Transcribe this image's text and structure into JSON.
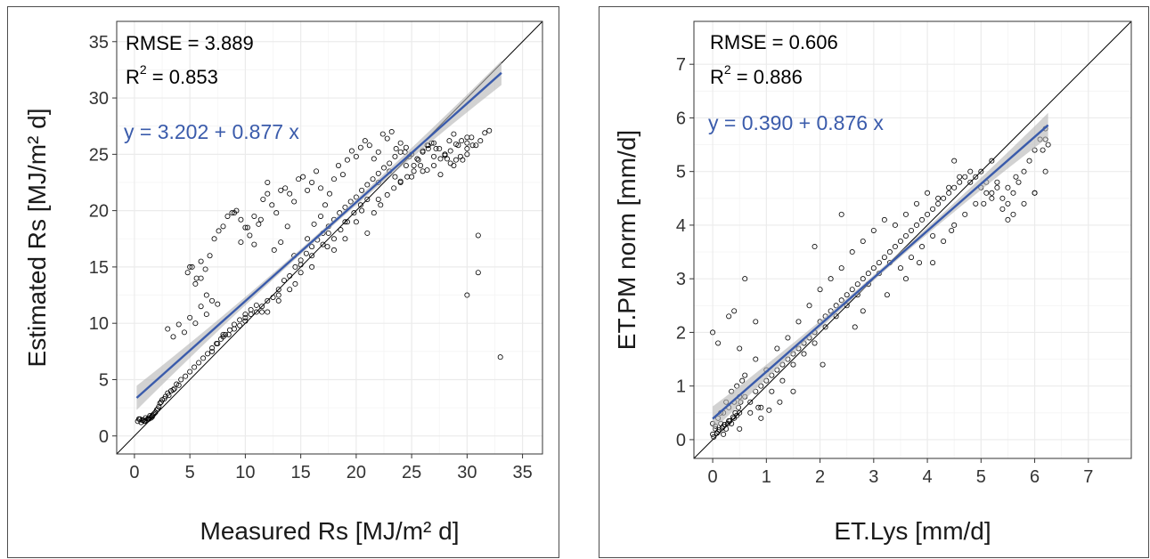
{
  "colors": {
    "fit_line": "#3a5bab",
    "ci_band": "#b4b4b4",
    "grid": "#ebebeb",
    "points": "#000000"
  },
  "chart_data": [
    {
      "type": "scatter",
      "xlabel": "Measured Rs [MJ/m² d]",
      "ylabel": "Estimated Rs [MJ/m² d]",
      "xlim": [
        -1.6,
        36.8
      ],
      "ylim": [
        -1.6,
        36.8
      ],
      "xticks": [
        0,
        5,
        10,
        15,
        20,
        25,
        30,
        35
      ],
      "yticks": [
        0,
        5,
        10,
        15,
        20,
        25,
        30,
        35
      ],
      "grid": true,
      "identity_line": true,
      "annotations": {
        "rmse_label": "RMSE = 3.889",
        "r2_label": "R",
        "r2_sup": "2",
        "r2_value": " = 0.853",
        "equation": "y = 3.202 + 0.877 x"
      },
      "fit": {
        "intercept": 3.202,
        "slope": 0.877,
        "x_range": [
          0.2,
          33.1
        ]
      },
      "points_x": [
        0.3,
        0.5,
        0.8,
        1.0,
        1.2,
        1.4,
        1.6,
        1.8,
        0.6,
        0.9,
        1.1,
        1.3,
        1.5,
        1.7,
        2.0,
        2.2,
        0.4,
        0.7,
        1.0,
        1.3,
        1.6,
        1.9,
        2.1,
        2.3,
        2.5,
        2.8,
        3.0,
        3.3,
        3.6,
        4.0,
        2.4,
        2.7,
        3.1,
        3.5,
        3.8,
        4.2,
        4.6,
        5.0,
        5.4,
        5.8,
        6.2,
        6.6,
        7.0,
        7.4,
        7.8,
        8.2,
        8.6,
        9.0,
        9.5,
        10.0,
        10.5,
        11.0,
        3.0,
        3.5,
        4.0,
        4.5,
        5.0,
        5.5,
        6.0,
        6.5,
        7.0,
        7.5,
        4.8,
        5.2,
        5.6,
        6.0,
        6.4,
        6.8,
        7.2,
        7.6,
        8.0,
        8.4,
        8.8,
        9.2,
        9.6,
        10.0,
        10.4,
        10.8,
        11.2,
        11.6,
        12.0,
        12.4,
        12.8,
        13.2,
        13.6,
        14.0,
        14.4,
        14.8,
        15.2,
        15.6,
        16.0,
        16.4,
        16.8,
        17.2,
        17.6,
        18.0,
        18.4,
        18.8,
        19.2,
        19.6,
        20.0,
        20.4,
        20.8,
        21.2,
        21.6,
        22.0,
        22.4,
        22.8,
        23.2,
        23.6,
        24.0,
        24.4,
        24.8,
        25.2,
        25.6,
        26.0,
        26.4,
        26.8,
        27.2,
        27.6,
        28.0,
        28.4,
        28.8,
        29.2,
        29.6,
        30.0,
        30.4,
        30.8,
        31.2,
        31.6,
        32.0,
        33.0,
        7.0,
        7.5,
        8.0,
        8.5,
        9.0,
        9.5,
        10.0,
        10.5,
        11.0,
        11.5,
        12.0,
        12.5,
        13.0,
        13.5,
        14.0,
        14.5,
        15.0,
        15.5,
        16.0,
        16.5,
        17.0,
        17.5,
        18.0,
        18.5,
        19.0,
        19.5,
        20.0,
        20.5,
        21.0,
        21.5,
        22.0,
        22.5,
        23.0,
        23.5,
        24.0,
        24.5,
        25.0,
        25.5,
        26.0,
        26.5,
        27.0,
        27.5,
        28.0,
        28.5,
        29.0,
        29.5,
        30.0,
        30.5,
        31.0,
        9.0,
        9.6,
        10.2,
        10.8,
        11.4,
        12.0,
        12.6,
        13.2,
        13.8,
        14.4,
        15.0,
        15.6,
        16.2,
        16.8,
        17.4,
        18.0,
        18.6,
        19.2,
        19.8,
        20.4,
        21.0,
        21.6,
        22.2,
        22.8,
        23.4,
        24.0,
        24.6,
        25.2,
        25.8,
        26.4,
        27.0,
        27.6,
        28.2,
        28.8,
        29.4,
        30.0,
        12.0,
        13.0,
        14.0,
        15.0,
        16.0,
        17.0,
        18.0,
        19.0,
        20.0,
        21.0,
        22.0,
        23.0,
        24.0,
        25.0,
        26.0,
        27.0,
        28.0,
        29.0,
        30.0,
        31.0,
        5.0,
        5.5,
        6.0,
        6.5,
        8.0,
        10.0,
        11.5,
        13.0,
        14.5,
        16.0,
        17.5,
        19.0,
        20.5,
        22.0,
        23.5,
        24.5,
        26.5,
        28.5,
        30.0,
        31.5
      ],
      "points_y": [
        1.3,
        1.5,
        1.4,
        1.6,
        1.5,
        1.8,
        1.7,
        2.0,
        1.2,
        1.3,
        1.4,
        1.5,
        1.6,
        1.9,
        2.3,
        2.6,
        1.5,
        1.4,
        1.3,
        1.6,
        1.8,
        2.1,
        2.4,
        2.9,
        3.2,
        3.5,
        3.8,
        4.0,
        4.2,
        4.5,
        3.0,
        3.3,
        3.6,
        4.1,
        4.6,
        5.0,
        5.3,
        5.7,
        6.1,
        6.5,
        6.9,
        7.3,
        7.8,
        8.2,
        8.6,
        9.0,
        9.4,
        9.9,
        10.3,
        10.8,
        11.2,
        11.6,
        9.5,
        8.8,
        9.9,
        9.2,
        10.5,
        10.0,
        11.5,
        10.8,
        12.0,
        11.7,
        14.5,
        15.0,
        14.0,
        15.5,
        14.8,
        16.0,
        17.5,
        18.2,
        18.6,
        19.5,
        19.8,
        20.0,
        19.2,
        18.5,
        17.8,
        19.5,
        18.8,
        21.0,
        22.5,
        20.5,
        19.8,
        21.8,
        22.0,
        21.5,
        20.8,
        22.8,
        23.0,
        21.8,
        22.5,
        23.5,
        22.0,
        20.5,
        21.5,
        22.8,
        24.0,
        23.2,
        24.5,
        25.3,
        24.8,
        25.6,
        26.2,
        25.8,
        24.6,
        25.2,
        26.8,
        26.4,
        27.0,
        25.5,
        26.0,
        25.2,
        24.8,
        24.0,
        24.5,
        25.3,
        25.8,
        26.0,
        25.5,
        24.6,
        25.0,
        26.2,
        26.8,
        25.8,
        24.5,
        25.0,
        26.5,
        25.8,
        26.2,
        26.9,
        27.1,
        7.0,
        7.5,
        8.2,
        8.8,
        9.0,
        9.5,
        9.8,
        10.2,
        10.8,
        11.0,
        11.5,
        12.0,
        12.3,
        13.0,
        13.8,
        14.2,
        15.0,
        15.6,
        16.2,
        16.8,
        17.4,
        18.0,
        18.6,
        19.2,
        19.8,
        20.3,
        20.8,
        21.2,
        21.8,
        22.3,
        22.8,
        23.3,
        23.8,
        24.2,
        24.8,
        25.2,
        25.6,
        25.0,
        24.6,
        25.2,
        25.8,
        26.0,
        25.5,
        24.9,
        25.3,
        25.9,
        26.2,
        26.5,
        25.8,
        17.8,
        19.8,
        17.2,
        18.5,
        17.0,
        19.2,
        21.5,
        16.5,
        17.2,
        18.6,
        16.0,
        15.2,
        17.5,
        18.8,
        19.5,
        16.8,
        17.5,
        18.3,
        19.0,
        19.8,
        20.5,
        21.0,
        19.8,
        20.5,
        21.4,
        22.0,
        22.6,
        23.0,
        23.5,
        24.0,
        23.6,
        24.8,
        23.2,
        24.6,
        24.0,
        24.8,
        12.5,
        11.0,
        12.0,
        13.0,
        14.5,
        15.0,
        17.0,
        16.5,
        17.5,
        19.0,
        18.0,
        21.0,
        23.5,
        22.5,
        23.0,
        23.5,
        24.0,
        25.0,
        24.5,
        25.5,
        14.5,
        15.0,
        13.5,
        14.0,
        12.5,
        9.0,
        10.5,
        11.0,
        12.5,
        13.5,
        16.0,
        18.0,
        19.0,
        20.0,
        22.5,
        23.0,
        24.0,
        25.5,
        24.2,
        26.0
      ]
    },
    {
      "type": "scatter",
      "xlabel": "ET.Lys [mm/d]",
      "ylabel": "ET.PM norm [mm/d]",
      "xlim": [
        -0.35,
        7.8
      ],
      "ylim": [
        -0.35,
        7.8
      ],
      "xticks": [
        0,
        1,
        2,
        3,
        4,
        5,
        6,
        7
      ],
      "yticks": [
        0,
        1,
        2,
        3,
        4,
        5,
        6,
        7
      ],
      "grid": true,
      "identity_line": true,
      "annotations": {
        "rmse_label": "RMSE = 0.606",
        "r2_label": "R",
        "r2_sup": "2",
        "r2_value": " = 0.886",
        "equation": "y = 0.390 + 0.876 x"
      },
      "fit": {
        "intercept": 0.39,
        "slope": 0.876,
        "x_range": [
          0.0,
          6.25
        ]
      },
      "points_x": [
        0.0,
        0.05,
        0.1,
        0.15,
        0.2,
        0.25,
        0.3,
        0.35,
        0.4,
        0.45,
        0.5,
        0.02,
        0.08,
        0.12,
        0.18,
        0.22,
        0.28,
        0.32,
        0.38,
        0.42,
        0.48,
        0.52,
        0.05,
        0.1,
        0.2,
        0.3,
        0.4,
        0.5,
        0.0,
        0.15,
        0.25,
        0.35,
        0.45,
        0.55,
        0.6,
        0.7,
        0.8,
        0.9,
        1.0,
        1.1,
        1.2,
        1.3,
        1.4,
        1.5,
        1.6,
        1.7,
        1.8,
        1.9,
        2.0,
        2.1,
        2.2,
        2.3,
        2.4,
        2.5,
        2.6,
        2.7,
        2.8,
        2.9,
        3.0,
        3.1,
        3.2,
        3.3,
        3.4,
        3.5,
        3.6,
        3.7,
        3.8,
        3.9,
        4.0,
        4.1,
        4.2,
        4.3,
        4.4,
        4.5,
        4.6,
        4.7,
        4.8,
        4.9,
        5.0,
        5.1,
        5.2,
        5.3,
        5.4,
        5.5,
        5.6,
        5.7,
        5.8,
        5.9,
        6.0,
        6.1,
        6.2,
        6.25,
        0.6,
        0.8,
        1.0,
        1.2,
        1.4,
        1.6,
        1.8,
        2.0,
        2.2,
        2.4,
        2.6,
        2.8,
        3.0,
        3.2,
        3.4,
        3.6,
        3.8,
        4.0,
        4.2,
        4.4,
        4.6,
        4.8,
        5.0,
        5.2,
        5.4,
        5.6,
        5.8,
        6.0,
        6.2,
        0.9,
        1.1,
        1.3,
        1.5,
        1.7,
        1.9,
        2.1,
        2.3,
        2.5,
        2.7,
        2.9,
        3.1,
        3.3,
        3.5,
        3.7,
        3.9,
        4.1,
        4.3,
        4.5,
        4.7,
        4.9,
        5.1,
        5.3,
        5.5,
        0.0,
        0.1,
        0.3,
        0.4,
        0.5,
        0.6,
        0.8,
        1.9,
        2.4,
        4.5,
        5.2,
        6.2,
        0.2,
        0.5,
        0.9,
        2.8,
        3.6,
        4.1,
        5.5,
        6.0,
        0.7,
        0.85,
        1.05,
        1.25,
        1.5,
        2.05,
        2.65,
        3.25,
        3.85,
        4.45,
        5.05,
        5.65,
        6.15
      ],
      "points_y": [
        0.1,
        0.2,
        0.15,
        0.3,
        0.25,
        0.2,
        0.35,
        0.3,
        0.4,
        0.45,
        0.5,
        0.05,
        0.12,
        0.18,
        0.22,
        0.28,
        0.3,
        0.35,
        0.42,
        0.5,
        0.6,
        0.7,
        0.25,
        0.4,
        0.5,
        0.6,
        0.7,
        0.8,
        0.3,
        0.5,
        0.7,
        0.9,
        1.0,
        1.1,
        0.8,
        0.7,
        0.9,
        1.0,
        1.1,
        1.2,
        1.3,
        1.4,
        1.5,
        1.6,
        1.7,
        1.8,
        1.9,
        2.0,
        2.2,
        2.3,
        2.4,
        2.5,
        2.6,
        2.7,
        2.8,
        2.9,
        3.0,
        3.1,
        3.2,
        3.3,
        3.4,
        3.5,
        3.6,
        3.7,
        3.8,
        3.9,
        4.0,
        4.1,
        4.2,
        4.3,
        4.4,
        4.5,
        4.6,
        4.7,
        4.8,
        4.9,
        5.0,
        4.9,
        5.0,
        4.8,
        4.6,
        4.7,
        4.5,
        4.4,
        4.6,
        4.8,
        5.0,
        5.2,
        5.4,
        5.6,
        5.8,
        5.5,
        1.2,
        1.5,
        1.3,
        1.7,
        1.9,
        2.2,
        2.5,
        2.8,
        3.0,
        3.2,
        3.5,
        3.7,
        3.9,
        4.1,
        4.0,
        4.2,
        4.4,
        4.6,
        4.5,
        4.7,
        4.9,
        4.8,
        4.7,
        4.5,
        4.3,
        4.2,
        4.4,
        4.6,
        5.0,
        0.6,
        0.9,
        1.1,
        1.4,
        1.6,
        1.8,
        2.1,
        2.3,
        2.5,
        2.7,
        2.9,
        3.1,
        3.3,
        3.2,
        3.4,
        3.6,
        3.8,
        3.7,
        4.0,
        4.2,
        4.4,
        4.6,
        4.8,
        4.7,
        2.0,
        1.8,
        2.3,
        2.4,
        1.7,
        3.0,
        2.2,
        3.6,
        4.2,
        5.2,
        5.2,
        5.6,
        0.1,
        0.2,
        0.4,
        2.4,
        3.0,
        3.3,
        4.1,
        4.6,
        0.5,
        0.6,
        0.55,
        0.7,
        0.9,
        1.4,
        2.1,
        2.7,
        3.3,
        3.9,
        4.4,
        4.9,
        5.4
      ]
    }
  ]
}
